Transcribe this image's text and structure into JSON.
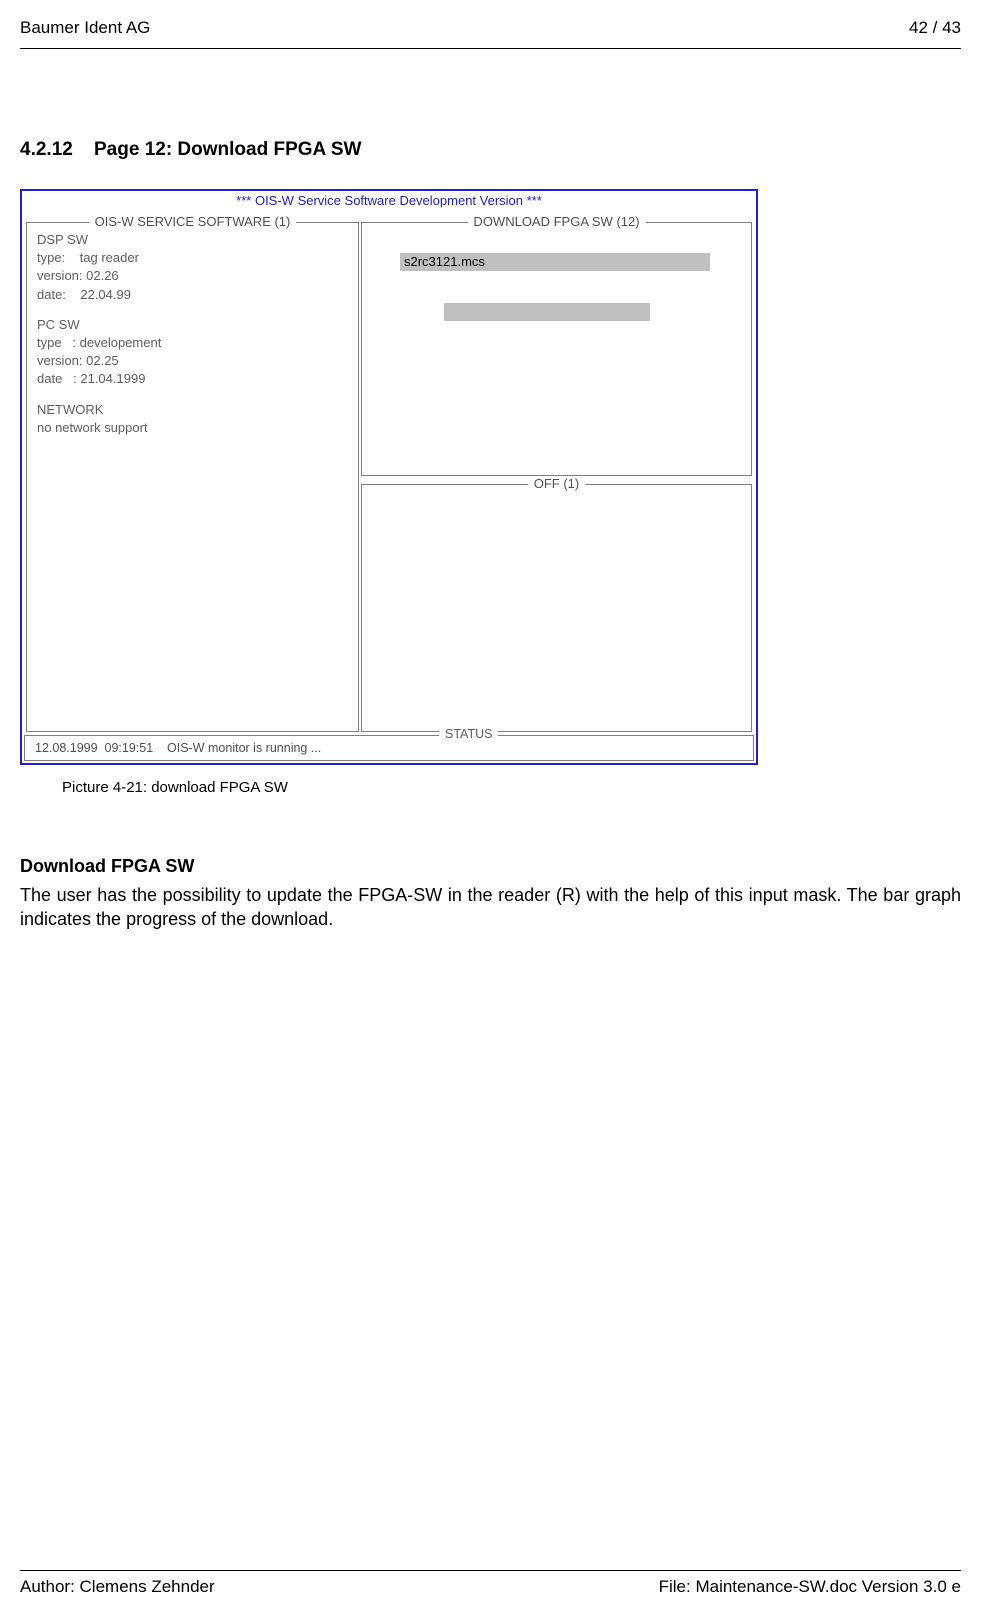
{
  "header": {
    "company": "Baumer Ident AG",
    "page_num": "42 / 43"
  },
  "section": {
    "number": "4.2.12",
    "title": "Page 12: Download FPGA SW"
  },
  "screenshot": {
    "title": "*** OIS-W Service Software Development Version ***",
    "left_panel": {
      "label": "OIS-W SERVICE SOFTWARE (1)",
      "dsp": {
        "header": "DSP SW",
        "type": "type:    tag reader",
        "version": "version: 02.26",
        "date": "date:    22.04.99"
      },
      "pc": {
        "header": "PC SW",
        "type": "type   : developement",
        "version": "version: 02.25",
        "date": "date   : 21.04.1999"
      },
      "network": {
        "header": "NETWORK",
        "support": "no network support"
      }
    },
    "right_top_panel": {
      "label": "DOWNLOAD FPGA SW (12)",
      "file": "s2rc3121.mcs"
    },
    "right_bot_panel": {
      "label": "OFF (1)"
    },
    "status": {
      "label": "STATUS",
      "text": "12.08.1999  09:19:51    OIS-W monitor is running ..."
    }
  },
  "caption": "Picture 4-21: download FPGA SW",
  "body": {
    "heading": "Download FPGA SW",
    "paragraph": "The user has the possibility to update the FPGA-SW in the  reader (R) with the help of this input mask. The bar graph indicates the progress of the download."
  },
  "footer": {
    "author": "Author: Clemens Zehnder",
    "file": "File: Maintenance-SW.doc Version 3.0 e"
  }
}
